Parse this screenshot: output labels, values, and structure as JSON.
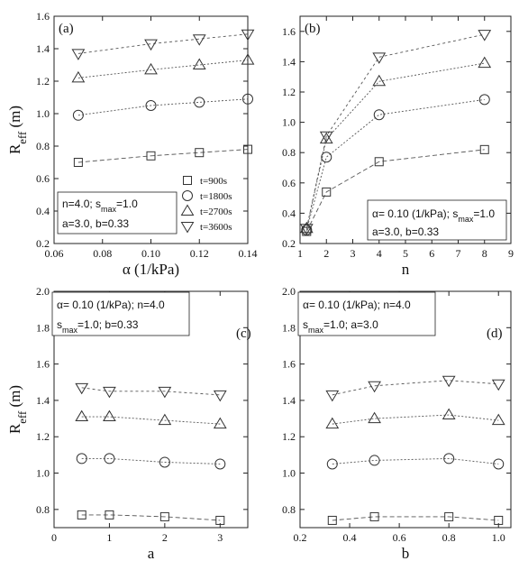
{
  "figure": {
    "legend": [
      "t=900s",
      "t=1800s",
      "t=2700s",
      "t=3600s"
    ],
    "legend_markers": [
      "square",
      "circle",
      "triangle-up",
      "triangle-down"
    ]
  },
  "chart_data": [
    {
      "type": "line",
      "panel": "(a)",
      "xlabel": "α (1/kPa)",
      "ylabel": "R_eff (m)",
      "xlim": [
        0.06,
        0.14
      ],
      "ylim": [
        0.2,
        1.6
      ],
      "xticks": [
        "0.06",
        "0.08",
        "0.10",
        "0.12",
        "0.14"
      ],
      "yticks": [
        "0.2",
        "0.4",
        "0.6",
        "0.8",
        "1.0",
        "1.2",
        "1.4",
        "1.6"
      ],
      "annotation": [
        "n=4.0; s_max=1.0",
        "a=3.0, b=0.33"
      ],
      "show_legend": true,
      "x": [
        0.07,
        0.1,
        0.12,
        0.14
      ],
      "series": [
        {
          "name": "t=900s",
          "marker": "square",
          "values": [
            0.7,
            0.74,
            0.76,
            0.78
          ]
        },
        {
          "name": "t=1800s",
          "marker": "circle",
          "values": [
            0.99,
            1.05,
            1.07,
            1.09
          ]
        },
        {
          "name": "t=2700s",
          "marker": "triangle-up",
          "values": [
            1.22,
            1.27,
            1.3,
            1.33
          ]
        },
        {
          "name": "t=3600s",
          "marker": "triangle-down",
          "values": [
            1.37,
            1.43,
            1.46,
            1.49
          ]
        }
      ]
    },
    {
      "type": "line",
      "panel": "(b)",
      "xlabel": "n",
      "ylabel": "",
      "xlim": [
        1,
        9
      ],
      "ylim": [
        0.2,
        1.7
      ],
      "xticks": [
        "1",
        "2",
        "3",
        "4",
        "5",
        "6",
        "7",
        "8",
        "9"
      ],
      "yticks": [
        "0.2",
        "0.4",
        "0.6",
        "0.8",
        "1.0",
        "1.2",
        "1.4",
        "1.6"
      ],
      "annotation": [
        "α= 0.10 (1/kPa); s_max=1.0",
        "a=3.0, b=0.33"
      ],
      "x": [
        1.25,
        2,
        4,
        8
      ],
      "series": [
        {
          "name": "t=900s",
          "marker": "square",
          "values": [
            0.28,
            0.54,
            0.74,
            0.82
          ]
        },
        {
          "name": "t=1800s",
          "marker": "circle",
          "values": [
            0.29,
            0.77,
            1.05,
            1.15
          ]
        },
        {
          "name": "t=2700s",
          "marker": "triangle-up",
          "values": [
            0.3,
            0.89,
            1.27,
            1.39
          ]
        },
        {
          "name": "t=3600s",
          "marker": "triangle-down",
          "values": [
            0.3,
            0.91,
            1.43,
            1.58
          ]
        }
      ]
    },
    {
      "type": "line",
      "panel": "(c)",
      "xlabel": "a",
      "ylabel": "R_eff (m)",
      "xlim": [
        0,
        3.5
      ],
      "ylim": [
        0.7,
        2.0
      ],
      "xticks": [
        "0",
        "1",
        "2",
        "3"
      ],
      "yticks": [
        "0.8",
        "1.0",
        "1.2",
        "1.4",
        "1.6",
        "1.8",
        "2.0"
      ],
      "annotation": [
        "α= 0.10 (1/kPa); n=4.0",
        "s_max=1.0; b=0.33"
      ],
      "x": [
        0.5,
        1,
        2,
        3
      ],
      "series": [
        {
          "name": "t=900s",
          "marker": "square",
          "values": [
            0.77,
            0.77,
            0.76,
            0.74
          ]
        },
        {
          "name": "t=1800s",
          "marker": "circle",
          "values": [
            1.08,
            1.08,
            1.06,
            1.05
          ]
        },
        {
          "name": "t=2700s",
          "marker": "triangle-up",
          "values": [
            1.31,
            1.31,
            1.29,
            1.27
          ]
        },
        {
          "name": "t=3600s",
          "marker": "triangle-down",
          "values": [
            1.47,
            1.45,
            1.45,
            1.43
          ]
        }
      ]
    },
    {
      "type": "line",
      "panel": "(d)",
      "xlabel": "b",
      "ylabel": "",
      "xlim": [
        0.2,
        1.05
      ],
      "ylim": [
        0.7,
        2.0
      ],
      "xticks": [
        "0.2",
        "0.4",
        "0.6",
        "0.8",
        "1.0"
      ],
      "yticks": [
        "0.8",
        "1.0",
        "1.2",
        "1.4",
        "1.6",
        "1.8",
        "2.0"
      ],
      "annotation": [
        "α= 0.10 (1/kPa); n=4.0",
        "s_max=1.0; a=3.0"
      ],
      "x": [
        0.33,
        0.5,
        0.8,
        1.0
      ],
      "series": [
        {
          "name": "t=900s",
          "marker": "square",
          "values": [
            0.74,
            0.76,
            0.76,
            0.74
          ]
        },
        {
          "name": "t=1800s",
          "marker": "circle",
          "values": [
            1.05,
            1.07,
            1.08,
            1.05
          ]
        },
        {
          "name": "t=2700s",
          "marker": "triangle-up",
          "values": [
            1.27,
            1.3,
            1.32,
            1.29
          ]
        },
        {
          "name": "t=3600s",
          "marker": "triangle-down",
          "values": [
            1.43,
            1.48,
            1.51,
            1.49
          ]
        }
      ]
    }
  ]
}
